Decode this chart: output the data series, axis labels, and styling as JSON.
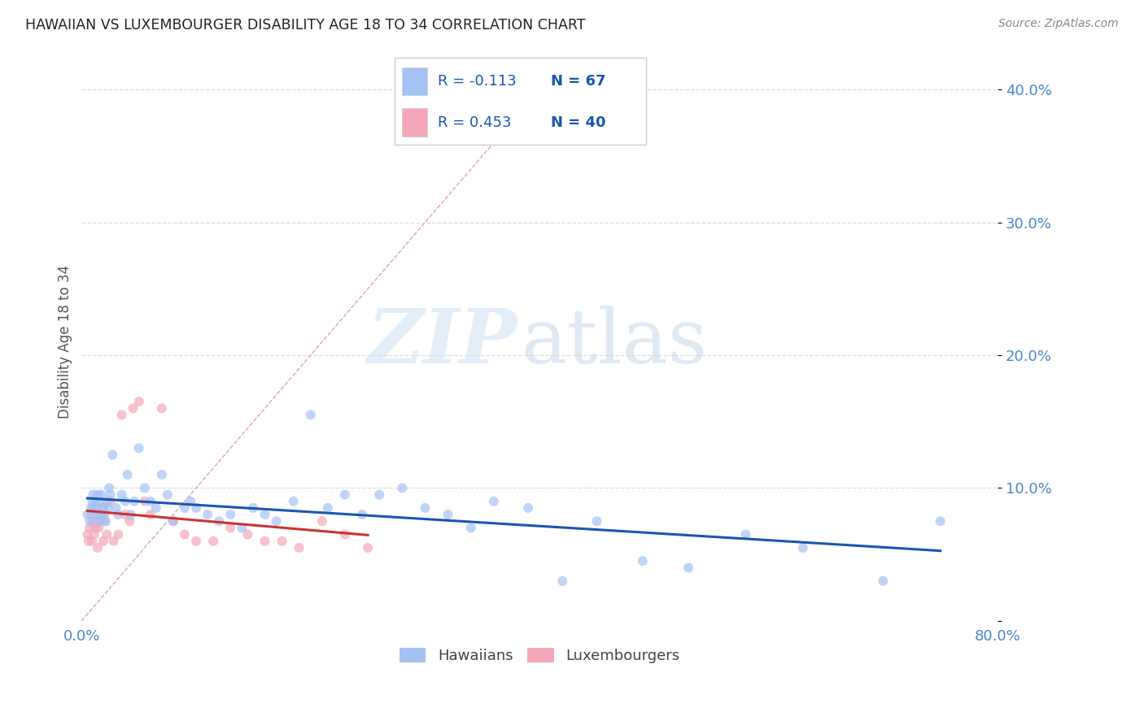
{
  "title": "HAWAIIAN VS LUXEMBOURGER DISABILITY AGE 18 TO 34 CORRELATION CHART",
  "source": "Source: ZipAtlas.com",
  "ylabel": "Disability Age 18 to 34",
  "xlim": [
    0,
    0.8
  ],
  "ylim": [
    0.0,
    0.42
  ],
  "yticks": [
    0.0,
    0.1,
    0.2,
    0.3,
    0.4
  ],
  "ytick_labels": [
    "",
    "10.0%",
    "20.0%",
    "30.0%",
    "40.0%"
  ],
  "xticks": [
    0.0,
    0.1,
    0.2,
    0.3,
    0.4,
    0.5,
    0.6,
    0.7,
    0.8
  ],
  "xtick_labels": [
    "0.0%",
    "",
    "",
    "",
    "",
    "",
    "",
    "",
    "80.0%"
  ],
  "hawaiian_color": "#a4c2f4",
  "luxembourger_color": "#f4a7b9",
  "trend_hawaiian_color": "#1a56b0",
  "trend_luxembourger_color": "#cc3333",
  "diagonal_color": "#e8a0a0",
  "r_hawaiian": -0.113,
  "n_hawaiian": 67,
  "r_luxembourger": 0.453,
  "n_luxembourger": 40,
  "hawaiian_x": [
    0.005,
    0.007,
    0.008,
    0.009,
    0.01,
    0.01,
    0.011,
    0.012,
    0.013,
    0.014,
    0.015,
    0.015,
    0.016,
    0.017,
    0.018,
    0.019,
    0.02,
    0.021,
    0.022,
    0.023,
    0.024,
    0.025,
    0.027,
    0.03,
    0.032,
    0.035,
    0.038,
    0.04,
    0.043,
    0.046,
    0.05,
    0.055,
    0.06,
    0.065,
    0.07,
    0.075,
    0.08,
    0.09,
    0.095,
    0.1,
    0.11,
    0.12,
    0.13,
    0.14,
    0.15,
    0.16,
    0.17,
    0.185,
    0.2,
    0.215,
    0.23,
    0.245,
    0.26,
    0.28,
    0.3,
    0.32,
    0.34,
    0.36,
    0.39,
    0.42,
    0.45,
    0.49,
    0.53,
    0.58,
    0.63,
    0.7,
    0.75
  ],
  "hawaiian_y": [
    0.08,
    0.075,
    0.085,
    0.09,
    0.095,
    0.085,
    0.08,
    0.09,
    0.085,
    0.095,
    0.075,
    0.08,
    0.09,
    0.095,
    0.08,
    0.085,
    0.08,
    0.075,
    0.09,
    0.085,
    0.1,
    0.095,
    0.125,
    0.085,
    0.08,
    0.095,
    0.09,
    0.11,
    0.08,
    0.09,
    0.13,
    0.1,
    0.09,
    0.085,
    0.11,
    0.095,
    0.075,
    0.085,
    0.09,
    0.085,
    0.08,
    0.075,
    0.08,
    0.07,
    0.085,
    0.08,
    0.075,
    0.09,
    0.155,
    0.085,
    0.095,
    0.08,
    0.095,
    0.1,
    0.085,
    0.08,
    0.07,
    0.09,
    0.085,
    0.03,
    0.075,
    0.045,
    0.04,
    0.065,
    0.055,
    0.03,
    0.075
  ],
  "luxembourger_x": [
    0.005,
    0.006,
    0.007,
    0.008,
    0.009,
    0.01,
    0.011,
    0.012,
    0.013,
    0.014,
    0.015,
    0.016,
    0.017,
    0.018,
    0.019,
    0.02,
    0.022,
    0.025,
    0.028,
    0.032,
    0.035,
    0.038,
    0.042,
    0.045,
    0.05,
    0.055,
    0.06,
    0.07,
    0.08,
    0.09,
    0.1,
    0.115,
    0.13,
    0.145,
    0.16,
    0.175,
    0.19,
    0.21,
    0.23,
    0.25
  ],
  "luxembourger_y": [
    0.065,
    0.06,
    0.07,
    0.08,
    0.06,
    0.075,
    0.065,
    0.07,
    0.08,
    0.055,
    0.07,
    0.075,
    0.08,
    0.085,
    0.06,
    0.075,
    0.065,
    0.09,
    0.06,
    0.065,
    0.155,
    0.08,
    0.075,
    0.16,
    0.165,
    0.09,
    0.08,
    0.16,
    0.075,
    0.065,
    0.06,
    0.06,
    0.07,
    0.065,
    0.06,
    0.06,
    0.055,
    0.075,
    0.065,
    0.055
  ],
  "watermark_zip": "ZIP",
  "watermark_atlas": "atlas",
  "background_color": "#ffffff",
  "grid_color": "#dddddd",
  "axis_label_color": "#4a86c8",
  "title_color": "#222222",
  "legend_text_color": "#1a56b0",
  "marker_size": 75,
  "marker_alpha": 0.7
}
